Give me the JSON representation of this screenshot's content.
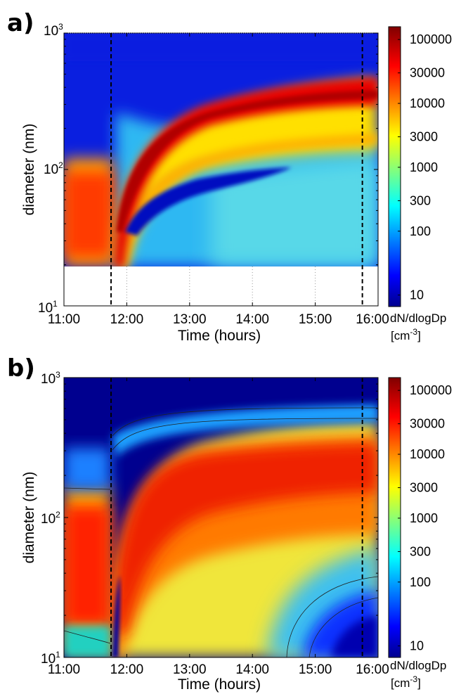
{
  "chart_data": [
    {
      "panel_label": "a)",
      "type": "heatmap",
      "xlabel": "Time (hours)",
      "ylabel": "diameter (nm)",
      "y_scale": "log",
      "xlim": [
        "11:00",
        "16:00"
      ],
      "ylim": [
        10,
        1000
      ],
      "x_ticks": [
        "11:00",
        "12:00",
        "13:00",
        "14:00",
        "15:00",
        "16:00"
      ],
      "y_ticks": [
        {
          "base": "10",
          "exp": "1"
        },
        {
          "base": "10",
          "exp": "2"
        },
        {
          "base": "10",
          "exp": "3"
        }
      ],
      "measured_diameter_range_nm": [
        20,
        900
      ],
      "vertical_dashed_lines": [
        "11:45",
        "15:45"
      ],
      "colorbar": {
        "scale": "log",
        "ticks": [
          "100000",
          "30000",
          "10000",
          "3000",
          "1000",
          "300",
          "100",
          "10"
        ],
        "label_line1": "dN/dlogDp",
        "label_unit_base": "[cm",
        "label_unit_exp": "-3",
        "label_unit_close": "]"
      },
      "features": [
        {
          "desc": "pre-existing mode before injection",
          "time": [
            "11:00",
            "11:45"
          ],
          "diameter_nm_peak": 55,
          "level": 15000
        },
        {
          "desc": "main growing mode",
          "time": [
            "11:50",
            "16:00"
          ],
          "diameter_nm_start": 60,
          "diameter_nm_end": 330,
          "level": 60000
        },
        {
          "desc": "secondary growing mode",
          "time": [
            "11:50",
            "16:00"
          ],
          "diameter_nm_start": 40,
          "diameter_nm_end": 160,
          "level": 3000
        },
        {
          "desc": "depleted band",
          "time": [
            "11:55",
            "14:40"
          ],
          "diameter_nm_start": 32,
          "diameter_nm_end": 100,
          "level": 5
        }
      ]
    },
    {
      "panel_label": "b)",
      "type": "heatmap",
      "xlabel": "Time (hours)",
      "ylabel": "diameter (nm)",
      "y_scale": "log",
      "xlim": [
        "11:00",
        "16:00"
      ],
      "ylim": [
        10,
        1000
      ],
      "x_ticks": [
        "11:00",
        "12:00",
        "13:00",
        "14:00",
        "15:00",
        "16:00"
      ],
      "y_ticks": [
        {
          "base": "10",
          "exp": "1"
        },
        {
          "base": "10",
          "exp": "2"
        },
        {
          "base": "10",
          "exp": "3"
        }
      ],
      "vertical_dashed_lines": [
        "11:45",
        "15:45"
      ],
      "colorbar": {
        "scale": "log",
        "ticks": [
          "100000",
          "30000",
          "10000",
          "3000",
          "1000",
          "300",
          "100",
          "10"
        ],
        "label_line1": "dN/dlogDp",
        "label_unit_base": "[cm",
        "label_unit_exp": "-3",
        "label_unit_close": "]"
      },
      "features": [
        {
          "desc": "pre-existing mode before injection",
          "time": [
            "11:00",
            "11:45"
          ],
          "diameter_nm_peak": 45,
          "level": 20000
        },
        {
          "desc": "main growing mode (model)",
          "time": [
            "11:50",
            "16:00"
          ],
          "diameter_nm_start": 70,
          "diameter_nm_end": 200,
          "level": 25000
        },
        {
          "desc": "depleted small-diameter region",
          "time": [
            "15:30",
            "16:00"
          ],
          "diameter_nm_center": 14,
          "level": 8
        }
      ]
    }
  ]
}
